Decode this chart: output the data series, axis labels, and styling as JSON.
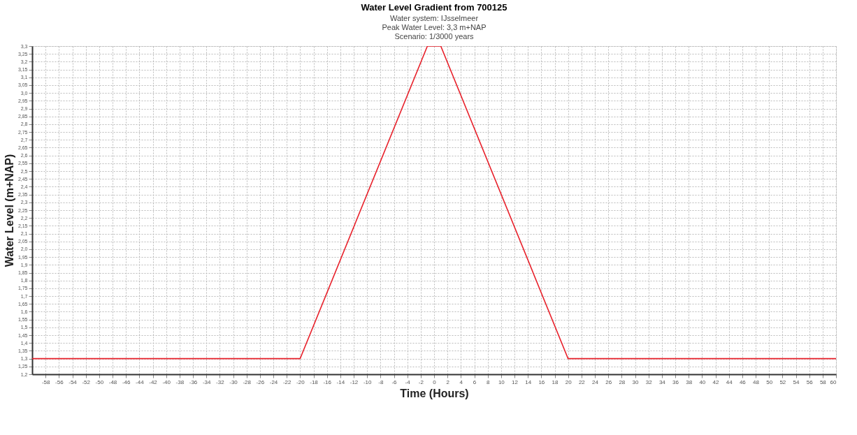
{
  "chart_data": {
    "type": "line",
    "title": "Water Level Gradient from 700125",
    "subtitle": [
      "Water system: IJsselmeer",
      "Peak Water Level: 3,3 m+NAP",
      "Scenario: 1/3000 years"
    ],
    "xlabel": "Time (Hours)",
    "ylabel": "Water Level (m+NAP)",
    "series": [
      {
        "color": "#e8212b",
        "x": [
          -60,
          -20,
          -1,
          1,
          20,
          60
        ],
        "values": [
          1.3,
          1.3,
          3.3,
          3.3,
          1.3,
          1.3
        ]
      }
    ],
    "xlim": [
      -60,
      60
    ],
    "xticks": [
      -58,
      -56,
      -54,
      -52,
      -50,
      -48,
      -46,
      -44,
      -42,
      -40,
      -38,
      -36,
      -34,
      -32,
      -30,
      -28,
      -26,
      -24,
      -22,
      -20,
      -18,
      -16,
      -14,
      -12,
      -10,
      -8,
      -6,
      -4,
      -2,
      0,
      2,
      4,
      6,
      8,
      10,
      12,
      14,
      16,
      18,
      20,
      22,
      24,
      26,
      28,
      30,
      32,
      34,
      36,
      38,
      40,
      42,
      44,
      46,
      48,
      50,
      52,
      54,
      56,
      58,
      60
    ],
    "ylim": [
      1.2,
      3.3
    ],
    "yticks": [
      {
        "value": 1.2,
        "label": "1,2"
      },
      {
        "value": 1.25,
        "label": "1,25"
      },
      {
        "value": 1.3,
        "label": "1,3"
      },
      {
        "value": 1.35,
        "label": "1,35"
      },
      {
        "value": 1.4,
        "label": "1,4"
      },
      {
        "value": 1.45,
        "label": "1,45"
      },
      {
        "value": 1.5,
        "label": "1,5"
      },
      {
        "value": 1.55,
        "label": "1,55"
      },
      {
        "value": 1.6,
        "label": "1,6"
      },
      {
        "value": 1.65,
        "label": "1,65"
      },
      {
        "value": 1.7,
        "label": "1,7"
      },
      {
        "value": 1.75,
        "label": "1,75"
      },
      {
        "value": 1.8,
        "label": "1,8"
      },
      {
        "value": 1.85,
        "label": "1,85"
      },
      {
        "value": 1.9,
        "label": "1,9"
      },
      {
        "value": 1.95,
        "label": "1,95"
      },
      {
        "value": 2.0,
        "label": "2,0"
      },
      {
        "value": 2.05,
        "label": "2,05"
      },
      {
        "value": 2.1,
        "label": "2,1"
      },
      {
        "value": 2.15,
        "label": "2,15"
      },
      {
        "value": 2.2,
        "label": "2,2"
      },
      {
        "value": 2.25,
        "label": "2,25"
      },
      {
        "value": 2.3,
        "label": "2,3"
      },
      {
        "value": 2.35,
        "label": "2,35"
      },
      {
        "value": 2.4,
        "label": "2,4"
      },
      {
        "value": 2.45,
        "label": "2,45"
      },
      {
        "value": 2.5,
        "label": "2,5"
      },
      {
        "value": 2.55,
        "label": "2,55"
      },
      {
        "value": 2.6,
        "label": "2,6"
      },
      {
        "value": 2.65,
        "label": "2,65"
      },
      {
        "value": 2.7,
        "label": "2,7"
      },
      {
        "value": 2.75,
        "label": "2,75"
      },
      {
        "value": 2.8,
        "label": "2,8"
      },
      {
        "value": 2.85,
        "label": "2,85"
      },
      {
        "value": 2.9,
        "label": "2,9"
      },
      {
        "value": 2.95,
        "label": "2,95"
      },
      {
        "value": 3.0,
        "label": "3,0"
      },
      {
        "value": 3.05,
        "label": "3,05"
      },
      {
        "value": 3.1,
        "label": "3,1"
      },
      {
        "value": 3.15,
        "label": "3,15"
      },
      {
        "value": 3.2,
        "label": "3,2"
      },
      {
        "value": 3.25,
        "label": "3,25"
      },
      {
        "value": 3.3,
        "label": "3,3"
      }
    ],
    "grid": true,
    "marker": "none",
    "line_style": "solid"
  }
}
